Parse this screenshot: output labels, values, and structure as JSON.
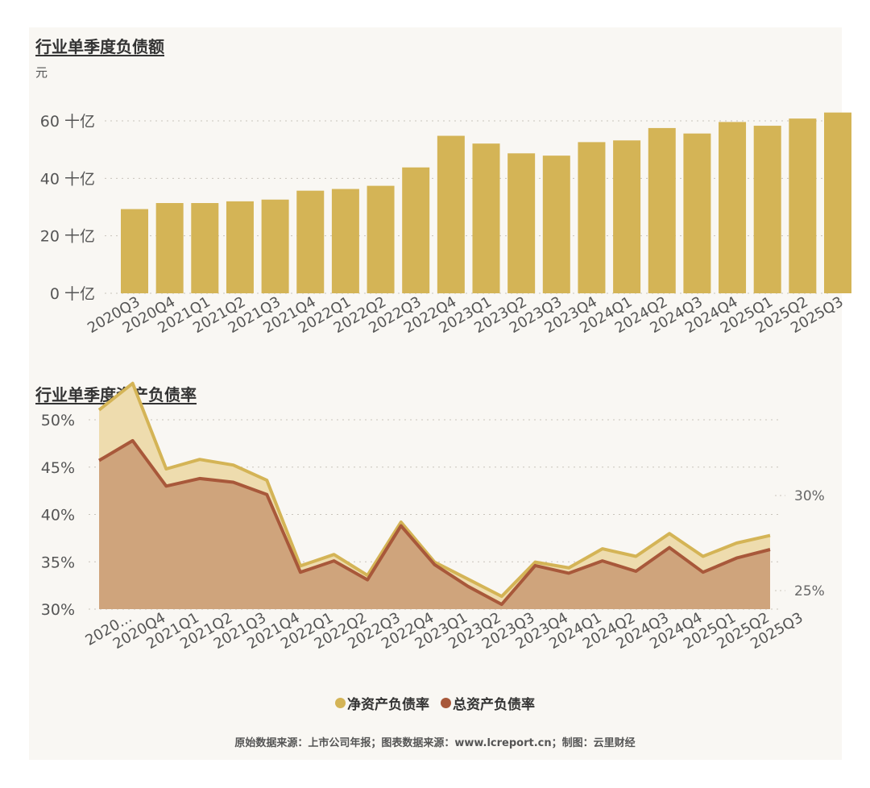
{
  "chart_data": [
    {
      "type": "bar",
      "title": "行业单季度负债额",
      "ylabel": "元",
      "categories": [
        "2020Q3",
        "2020Q4",
        "2021Q1",
        "2021Q2",
        "2021Q3",
        "2021Q4",
        "2022Q1",
        "2022Q2",
        "2022Q3",
        "2022Q4",
        "2023Q1",
        "2023Q2",
        "2023Q3",
        "2023Q4",
        "2024Q1",
        "2024Q2",
        "2024Q3",
        "2024Q4",
        "2025Q1",
        "2025Q2",
        "2025Q3"
      ],
      "values": [
        29.3,
        31.4,
        31.4,
        32.0,
        32.6,
        35.7,
        36.3,
        37.4,
        43.8,
        54.8,
        52.1,
        48.7,
        47.9,
        52.6,
        53.2,
        57.5,
        55.6,
        59.6,
        58.3,
        60.8,
        62.9
      ],
      "yticks": [
        {
          "value": 0,
          "label": "0 十亿"
        },
        {
          "value": 20,
          "label": "20 十亿"
        },
        {
          "value": 40,
          "label": "40 十亿"
        },
        {
          "value": 60,
          "label": "60 十亿"
        }
      ],
      "ylim": [
        0,
        64
      ],
      "color": "#d4b456",
      "grid": true
    },
    {
      "type": "area",
      "title": "行业单季度资产负债率",
      "categories": [
        "2020...",
        "2020Q4",
        "2021Q1",
        "2021Q2",
        "2021Q3",
        "2021Q4",
        "2022Q1",
        "2022Q2",
        "2022Q3",
        "2022Q4",
        "2023Q1",
        "2023Q2",
        "2023Q3",
        "2023Q4",
        "2024Q1",
        "2024Q2",
        "2024Q3",
        "2024Q4",
        "2025Q1",
        "2025Q2",
        "2025Q3"
      ],
      "series": [
        {
          "name": "净资产负债率",
          "axis": "right",
          "color": "#d4b456",
          "fill": "#eedcae",
          "values": [
            34.5,
            35.9,
            31.4,
            31.9,
            31.6,
            30.8,
            26.3,
            26.9,
            25.8,
            28.6,
            26.5,
            25.6,
            24.7,
            26.5,
            26.2,
            27.2,
            26.8,
            28.0,
            26.8,
            27.5,
            27.9
          ]
        },
        {
          "name": "总资产负债率",
          "axis": "left",
          "color": "#a8583a",
          "fill": "#cfa47c",
          "values": [
            45.7,
            47.8,
            43.0,
            43.8,
            43.4,
            42.1,
            33.9,
            35.1,
            33.1,
            38.8,
            34.7,
            32.4,
            30.5,
            34.6,
            33.8,
            35.1,
            34.0,
            36.5,
            33.9,
            35.4,
            36.3
          ]
        }
      ],
      "yticks_left": [
        {
          "value": 30,
          "label": "30%"
        },
        {
          "value": 35,
          "label": "35%"
        },
        {
          "value": 40,
          "label": "40%"
        },
        {
          "value": 45,
          "label": "45%"
        },
        {
          "value": 50,
          "label": "50%"
        }
      ],
      "ylim_left": [
        30,
        50
      ],
      "yticks_right": [
        {
          "value": 25,
          "label": "25%"
        },
        {
          "value": 30,
          "label": "30%"
        }
      ],
      "ylim_right": [
        24,
        36
      ],
      "grid": true,
      "legend": "bottom"
    }
  ],
  "footer": {
    "source": "原始数据来源：上市公司年报；图表数据来源：www.lcreport.cn；制图：云里财经"
  }
}
